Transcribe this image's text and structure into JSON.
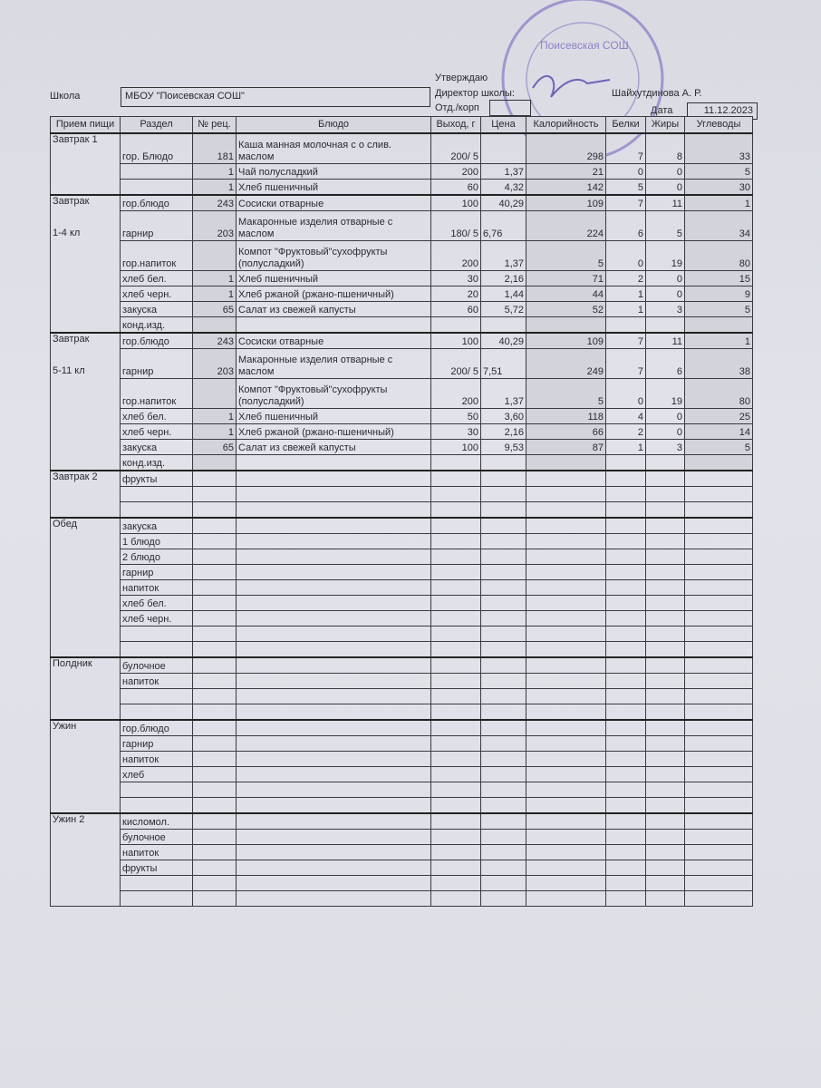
{
  "header": {
    "school_label": "Школа",
    "school_name": "МБОУ \"Поисевская СОШ\"",
    "approve_label": "Утверждаю",
    "director_label": "Директор школы:",
    "director_name": "Шайхутдинова А. Р.",
    "dept_label": "Отд./корп",
    "date_label": "Дата",
    "date_value": "11.12.2023",
    "stamp_text": "Поисевская СОШ"
  },
  "columns": [
    "Прием пищи",
    "Раздел",
    "№ рец.",
    "Блюдо",
    "Выход, г",
    "Цена",
    "Калорийность",
    "Белки",
    "Жиры",
    "Углеводы"
  ],
  "groups": [
    {
      "meal": "Завтрак 1",
      "sub": "",
      "rows": [
        [
          "гор. Блюдо",
          "181",
          "Каша манная молочная с о слив. маслом",
          "200/ 5",
          "",
          "298",
          "7",
          "8",
          "33"
        ],
        [
          "",
          "1",
          "Чай полусладкий",
          "200",
          "1,37",
          "21",
          "0",
          "0",
          "5"
        ],
        [
          "",
          "1",
          "Хлеб пшеничный",
          "60",
          "4,32",
          "142",
          "5",
          "0",
          "30"
        ]
      ]
    },
    {
      "meal": "Завтрак",
      "sub": "1-4 кл",
      "rows": [
        [
          "гор.блюдо",
          "243",
          "Сосиски отварные",
          "100",
          "40,29",
          "109",
          "7",
          "11",
          "1"
        ],
        [
          "гарнир",
          "203",
          "Макаронные изделия отварные с маслом",
          "180/  5",
          "6,76",
          "224",
          "6",
          "5",
          "34"
        ],
        [
          "гор.напиток",
          "",
          "Компот \"Фруктовый\"сухофрукты (полусладкий)",
          "200",
          "1,37",
          "5",
          "0",
          "19",
          "80"
        ],
        [
          "хлеб бел.",
          "1",
          "Хлеб пшеничный",
          "30",
          "2,16",
          "71",
          "2",
          "0",
          "15"
        ],
        [
          "хлеб черн.",
          "1",
          "Хлеб ржаной (ржано-пшеничный)",
          "20",
          "1,44",
          "44",
          "1",
          "0",
          "9"
        ],
        [
          "закуска",
          "65",
          "Салат  из свежей капусты",
          "60",
          "5,72",
          "52",
          "1",
          "3",
          "5"
        ],
        [
          "конд.изд.",
          "",
          "",
          "",
          "",
          "",
          "",
          "",
          ""
        ]
      ]
    },
    {
      "meal": "Завтрак",
      "sub": "5-11 кл",
      "rows": [
        [
          "гор.блюдо",
          "243",
          "Сосиски отварные",
          "100",
          "40,29",
          "109",
          "7",
          "11",
          "1"
        ],
        [
          "гарнир",
          "203",
          "Макаронные изделия отварные с маслом",
          "200/  5",
          "7,51",
          "249",
          "7",
          "6",
          "38"
        ],
        [
          "гор.напиток",
          "",
          "Компот \"Фруктовый\"сухофрукты (полусладкий)",
          "200",
          "1,37",
          "5",
          "0",
          "19",
          "80"
        ],
        [
          "хлеб бел.",
          "1",
          "Хлеб пшеничный",
          "50",
          "3,60",
          "118",
          "4",
          "0",
          "25"
        ],
        [
          "хлеб черн.",
          "1",
          "Хлеб ржаной (ржано-пшеничный)",
          "30",
          "2,16",
          "66",
          "2",
          "0",
          "14"
        ],
        [
          "закуска",
          "65",
          "Салат  из свежей капусты",
          "100",
          "9,53",
          "87",
          "1",
          "3",
          "5"
        ],
        [
          "конд.изд.",
          "",
          "",
          "",
          "",
          "",
          "",
          "",
          ""
        ]
      ]
    },
    {
      "meal": "Завтрак 2",
      "sub": "",
      "rows": [
        [
          "фрукты"
        ],
        [
          ""
        ],
        [
          ""
        ]
      ]
    },
    {
      "meal": "Обед",
      "sub": "",
      "rows": [
        [
          "закуска"
        ],
        [
          "1 блюдо"
        ],
        [
          "2 блюдо"
        ],
        [
          "гарнир"
        ],
        [
          "напиток"
        ],
        [
          "хлеб бел."
        ],
        [
          "хлеб черн."
        ],
        [
          ""
        ],
        [
          ""
        ]
      ]
    },
    {
      "meal": "Полдник",
      "sub": "",
      "rows": [
        [
          "булочное"
        ],
        [
          "напиток"
        ],
        [
          ""
        ],
        [
          ""
        ]
      ]
    },
    {
      "meal": "Ужин",
      "sub": "",
      "rows": [
        [
          "гор.блюдо"
        ],
        [
          "гарнир"
        ],
        [
          "напиток"
        ],
        [
          "хлеб"
        ],
        [
          ""
        ],
        [
          ""
        ]
      ]
    },
    {
      "meal": "Ужин 2",
      "sub": "",
      "rows": [
        [
          "кисломол."
        ],
        [
          "булочное"
        ],
        [
          "напиток"
        ],
        [
          "фрукты"
        ],
        [
          ""
        ],
        [
          ""
        ]
      ]
    }
  ]
}
